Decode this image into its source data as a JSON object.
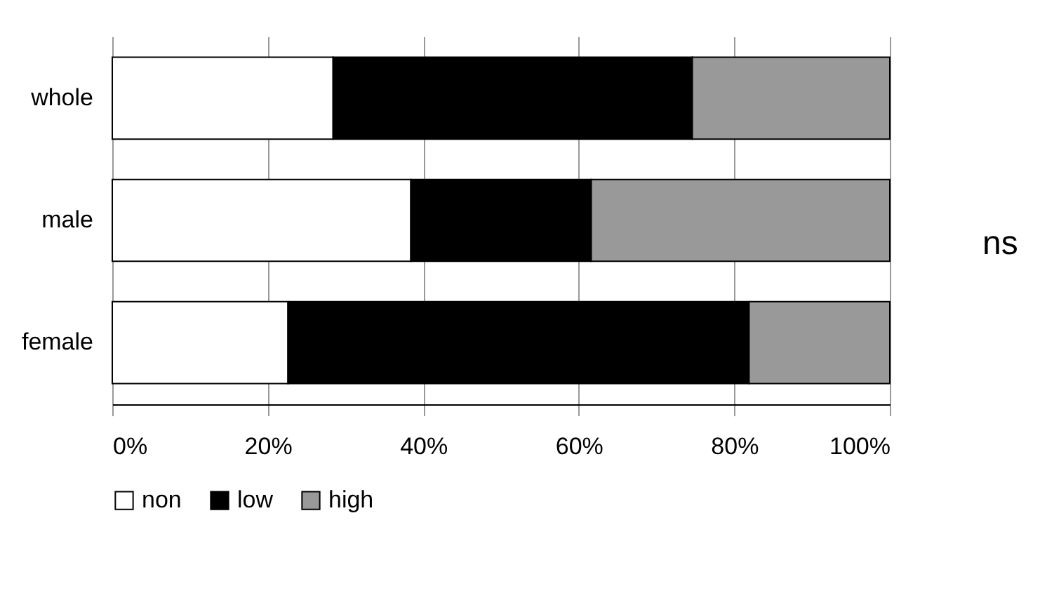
{
  "chart_data": {
    "type": "bar",
    "orientation": "horizontal",
    "stacked": true,
    "categories": [
      "whole",
      "male",
      "female"
    ],
    "series": [
      {
        "name": "non",
        "color": "#ffffff",
        "values": [
          28.4,
          38.4,
          22.6
        ]
      },
      {
        "name": "low",
        "color": "#000000",
        "values": [
          46.2,
          23.2,
          59.3
        ]
      },
      {
        "name": "high",
        "color": "#999999",
        "values": [
          25.4,
          38.4,
          18.1
        ]
      }
    ],
    "xlim": [
      0,
      100
    ],
    "xticks": [
      {
        "value": 0,
        "label": "0%"
      },
      {
        "value": 20,
        "label": "20%"
      },
      {
        "value": 40,
        "label": "40%"
      },
      {
        "value": 60,
        "label": "60%"
      },
      {
        "value": 80,
        "label": "80%"
      },
      {
        "value": 100,
        "label": "100%"
      }
    ],
    "grid": "x",
    "legend": "bottom",
    "annotations": [
      "ns"
    ]
  }
}
